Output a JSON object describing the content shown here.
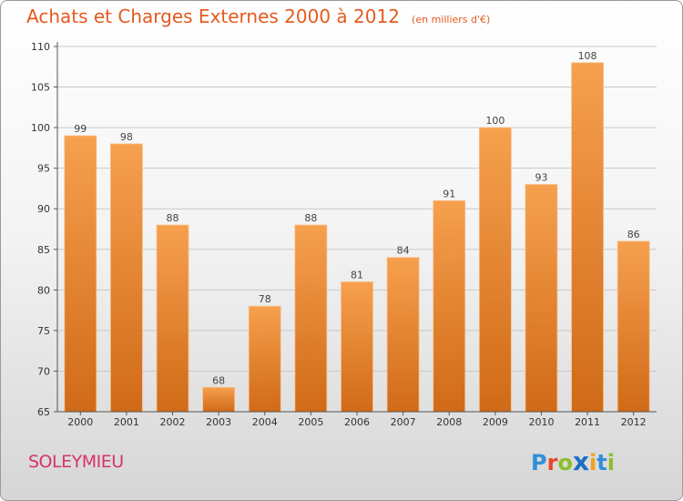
{
  "header": {
    "title": "Achats et Charges Externes 2000 à 2012",
    "unit": "(en milliers d'€)"
  },
  "footer": {
    "commune": "SOLEYMIEU",
    "logo_text": "Proxiti"
  },
  "colors": {
    "title": "#e55a1f",
    "bar_top": "#f6a04e",
    "bar_bottom": "#d06a18",
    "commune": "#d6336c"
  },
  "chart_data": {
    "type": "bar",
    "categories": [
      "2000",
      "2001",
      "2002",
      "2003",
      "2004",
      "2005",
      "2006",
      "2007",
      "2008",
      "2009",
      "2010",
      "2011",
      "2012"
    ],
    "values": [
      99,
      98,
      88,
      68,
      78,
      88,
      81,
      84,
      91,
      100,
      93,
      108,
      86
    ],
    "ylim": [
      65,
      110
    ],
    "yticks": [
      65,
      70,
      75,
      80,
      85,
      90,
      95,
      100,
      105,
      110
    ],
    "grid": true
  }
}
